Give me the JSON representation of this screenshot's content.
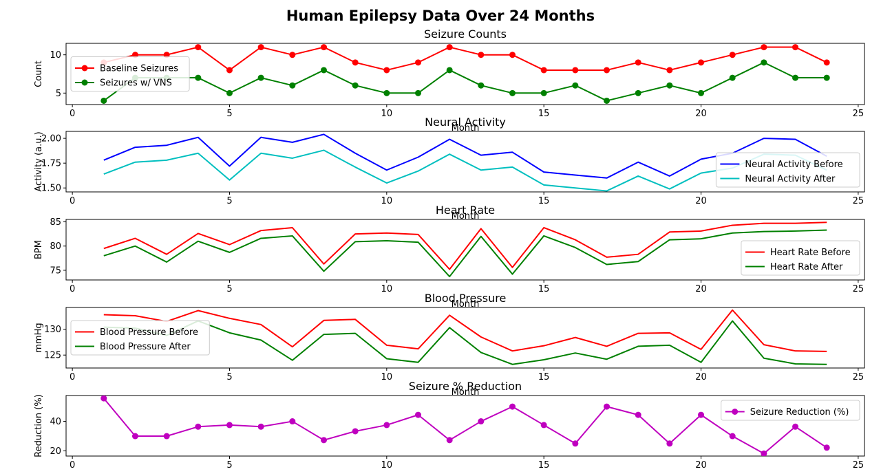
{
  "figure_title": "Human Epilepsy Data Over 24 Months",
  "chart_data": [
    {
      "type": "line",
      "title": "Seizure Counts",
      "xlabel": "",
      "ylabel": "Count",
      "xlim": [
        -0.2,
        25.2
      ],
      "ylim": [
        3.5,
        11.5
      ],
      "xticks": [
        0,
        5,
        10,
        15,
        20,
        25
      ],
      "yticks": [
        5,
        10
      ],
      "grid": false,
      "legend": "center-left",
      "x": [
        1,
        2,
        3,
        4,
        5,
        6,
        7,
        8,
        9,
        10,
        11,
        12,
        13,
        14,
        15,
        16,
        17,
        18,
        19,
        20,
        21,
        22,
        23,
        24
      ],
      "series": [
        {
          "name": "Baseline Seizures",
          "color": "#ff0000",
          "marker": "circle",
          "values": [
            9,
            10,
            10,
            11,
            8,
            11,
            10,
            11,
            9,
            8,
            9,
            11,
            10,
            10,
            8,
            8,
            8,
            9,
            8,
            9,
            10,
            11,
            11,
            9
          ]
        },
        {
          "name": "Seizures w/ VNS",
          "color": "#008000",
          "marker": "circle",
          "values": [
            4,
            7,
            7,
            7,
            5,
            7,
            6,
            8,
            6,
            5,
            5,
            8,
            6,
            5,
            5,
            6,
            4,
            5,
            6,
            5,
            7,
            9,
            7,
            7
          ]
        }
      ]
    },
    {
      "type": "line",
      "title": "Neural Activity",
      "xlabel": "Month",
      "ylabel": "Activity (a.u.)",
      "xlim": [
        -0.2,
        25.2
      ],
      "ylim": [
        1.46,
        2.07
      ],
      "xticks": [
        0,
        5,
        10,
        15,
        20,
        25
      ],
      "yticks": [
        1.5,
        1.75,
        2.0
      ],
      "ytick_labels": [
        "1.50",
        "1.75",
        "2.00"
      ],
      "grid": false,
      "legend": "lower-right",
      "x": [
        1,
        2,
        3,
        4,
        5,
        6,
        7,
        8,
        9,
        10,
        11,
        12,
        13,
        14,
        15,
        16,
        17,
        18,
        19,
        20,
        21,
        22,
        23,
        24
      ],
      "series": [
        {
          "name": "Neural Activity Before",
          "color": "#0000ff",
          "marker": "none",
          "values": [
            1.78,
            1.91,
            1.93,
            2.01,
            1.72,
            2.01,
            1.96,
            2.04,
            1.85,
            1.68,
            1.81,
            1.99,
            1.83,
            1.86,
            1.66,
            1.63,
            1.6,
            1.76,
            1.62,
            1.79,
            1.85,
            2.0,
            1.99,
            1.82
          ]
        },
        {
          "name": "Neural Activity After",
          "color": "#00bfbf",
          "marker": "none",
          "values": [
            1.64,
            1.76,
            1.78,
            1.85,
            1.58,
            1.85,
            1.8,
            1.88,
            1.71,
            1.55,
            1.67,
            1.84,
            1.68,
            1.71,
            1.53,
            1.5,
            1.47,
            1.62,
            1.49,
            1.65,
            1.7,
            1.84,
            1.83,
            1.68
          ]
        }
      ]
    },
    {
      "type": "line",
      "title": "Heart Rate",
      "xlabel": "Month",
      "ylabel": "BPM",
      "xlim": [
        -0.2,
        25.2
      ],
      "ylim": [
        73.0,
        85.5
      ],
      "xticks": [
        0,
        5,
        10,
        15,
        20,
        25
      ],
      "yticks": [
        75,
        80,
        85
      ],
      "grid": false,
      "legend": "lower-right",
      "x": [
        1,
        2,
        3,
        4,
        5,
        6,
        7,
        8,
        9,
        10,
        11,
        12,
        13,
        14,
        15,
        16,
        17,
        18,
        19,
        20,
        21,
        22,
        23,
        24
      ],
      "series": [
        {
          "name": "Heart Rate Before",
          "color": "#ff0000",
          "marker": "none",
          "values": [
            79.5,
            81.6,
            78.3,
            82.6,
            80.3,
            83.2,
            83.8,
            76.3,
            82.5,
            82.7,
            82.4,
            75.2,
            83.6,
            75.6,
            83.8,
            81.3,
            77.7,
            78.3,
            82.9,
            83.1,
            84.3,
            84.7,
            84.7,
            84.9
          ]
        },
        {
          "name": "Heart Rate After",
          "color": "#008000",
          "marker": "none",
          "values": [
            78.0,
            80.0,
            76.7,
            81.0,
            78.7,
            81.6,
            82.1,
            74.8,
            80.9,
            81.1,
            80.8,
            73.7,
            82.0,
            74.2,
            82.1,
            79.7,
            76.2,
            76.8,
            81.3,
            81.5,
            82.7,
            83.0,
            83.1,
            83.3
          ]
        }
      ]
    },
    {
      "type": "line",
      "title": "Blood Pressure",
      "xlabel": "Month",
      "ylabel": "mmHg",
      "xlim": [
        -0.2,
        25.2
      ],
      "ylim": [
        122.5,
        134.2
      ],
      "xticks": [
        0,
        5,
        10,
        15,
        20,
        25
      ],
      "yticks": [
        125,
        130
      ],
      "grid": false,
      "legend": "center-left",
      "x": [
        1,
        2,
        3,
        4,
        5,
        6,
        7,
        8,
        9,
        10,
        11,
        12,
        13,
        14,
        15,
        16,
        17,
        18,
        19,
        20,
        21,
        22,
        23,
        24
      ],
      "series": [
        {
          "name": "Blood Pressure Before",
          "color": "#ff0000",
          "marker": "none",
          "values": [
            132.8,
            132.6,
            131.5,
            133.6,
            132.1,
            130.9,
            126.6,
            131.7,
            131.9,
            126.9,
            126.2,
            132.7,
            128.5,
            125.8,
            126.8,
            128.4,
            126.7,
            129.2,
            129.3,
            126.1,
            133.7,
            127.0,
            125.8,
            125.7
          ]
        },
        {
          "name": "Blood Pressure After",
          "color": "#008000",
          "marker": "none",
          "values": [
            130.4,
            130.2,
            128.8,
            131.6,
            129.3,
            127.9,
            124.0,
            129.0,
            129.2,
            124.3,
            123.6,
            130.3,
            125.5,
            123.2,
            124.1,
            125.4,
            124.2,
            126.7,
            126.9,
            123.6,
            131.6,
            124.4,
            123.3,
            123.2
          ]
        }
      ]
    },
    {
      "type": "line",
      "title": "Seizure % Reduction",
      "xlabel": "Month",
      "ylabel": "Reduction (%)",
      "xlim": [
        -0.2,
        25.2
      ],
      "ylim": [
        16.5,
        57.5
      ],
      "xticks": [
        0,
        5,
        10,
        15,
        20,
        25
      ],
      "yticks": [
        20,
        40
      ],
      "grid": false,
      "legend": "upper-right",
      "x": [
        1,
        2,
        3,
        4,
        5,
        6,
        7,
        8,
        9,
        10,
        11,
        12,
        13,
        14,
        15,
        16,
        17,
        18,
        19,
        20,
        21,
        22,
        23,
        24
      ],
      "series": [
        {
          "name": "Seizure Reduction (%)",
          "color": "#bf00bf",
          "marker": "circle",
          "values": [
            55.6,
            30.0,
            30.0,
            36.4,
            37.5,
            36.4,
            40.0,
            27.3,
            33.3,
            37.5,
            44.4,
            27.3,
            40.0,
            50.0,
            37.5,
            25.0,
            50.0,
            44.4,
            25.0,
            44.4,
            30.0,
            18.2,
            36.4,
            22.2
          ]
        }
      ]
    }
  ]
}
